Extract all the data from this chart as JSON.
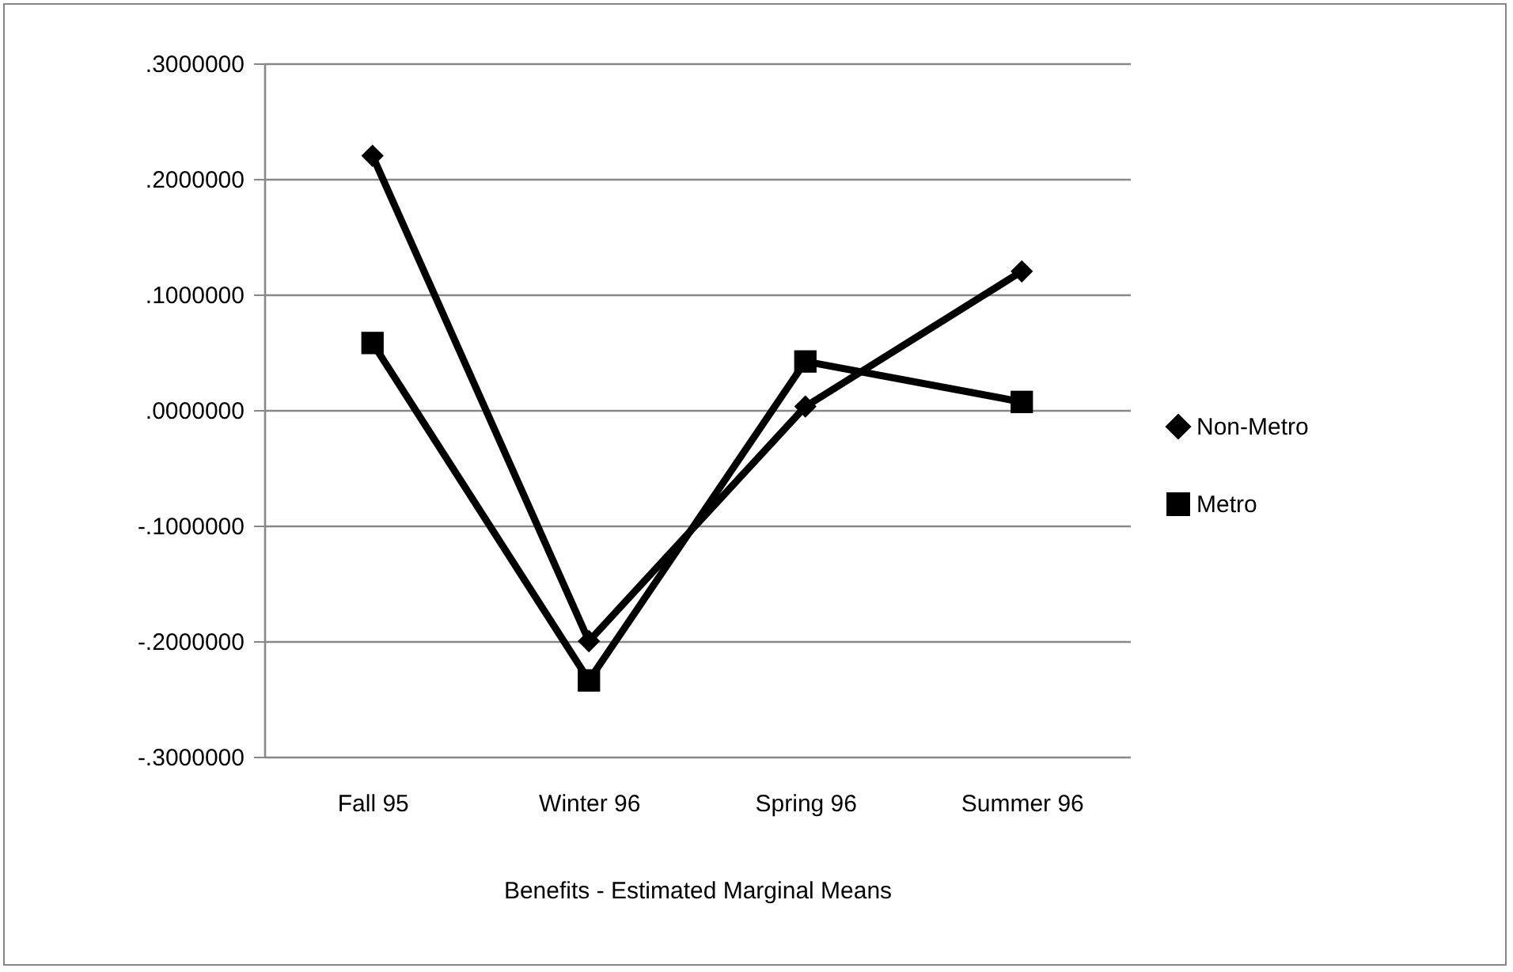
{
  "chart_data": {
    "type": "line",
    "xlabel": "Benefits - Estimated Marginal Means",
    "categories": [
      "Fall  95",
      "Winter 96",
      "Spring 96",
      "Summer 96"
    ],
    "series": [
      {
        "name": "Non-Metro",
        "color": "#000000",
        "marker": "diamond",
        "values": [
          0.22,
          -0.2,
          0.003,
          0.12
        ]
      },
      {
        "name": "Metro",
        "color": "#000000",
        "marker": "square",
        "values": [
          0.058,
          -0.234,
          0.042,
          0.007
        ]
      }
    ],
    "ylim": [
      -0.3,
      0.3
    ],
    "yticks": [
      {
        "value": -0.3,
        "label": "-.3000000"
      },
      {
        "value": -0.2,
        "label": "-.2000000"
      },
      {
        "value": -0.1,
        "label": "-.1000000"
      },
      {
        "value": 0,
        "label": ".0000000"
      },
      {
        "value": 0.1,
        "label": ".1000000"
      },
      {
        "value": 0.2,
        "label": ".2000000"
      },
      {
        "value": 0.3,
        "label": ".3000000"
      }
    ],
    "grid": "y",
    "legend": "right",
    "line_style": "solid"
  }
}
